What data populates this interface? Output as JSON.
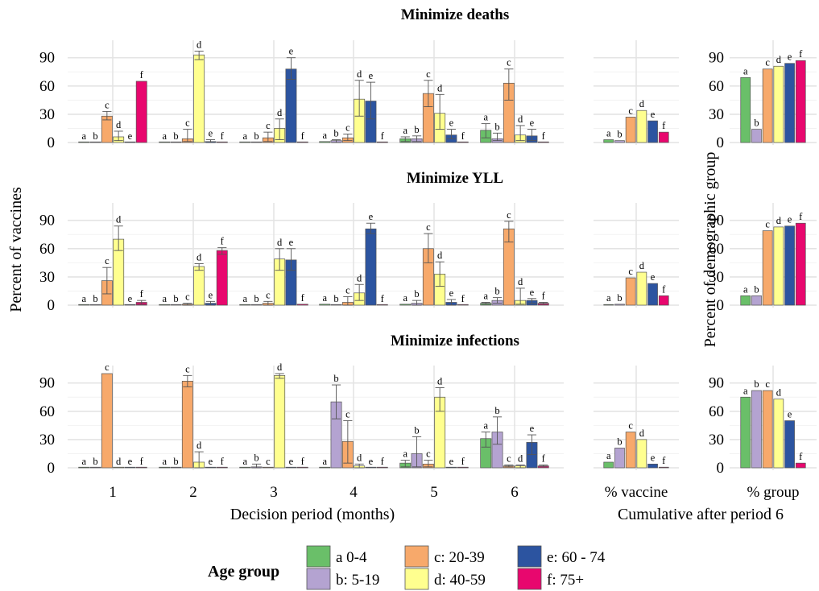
{
  "chart_data": {
    "type": "bar",
    "ylabel_left": "Percent of vaccines",
    "ylabel_right": "Percent of demographic group",
    "xlabel_main": "Decision period (months)",
    "xlabel_cumulative": "Cumulative after period 6",
    "periods": [
      "1",
      "2",
      "3",
      "4",
      "5",
      "6"
    ],
    "cumulative_labels": [
      "% vaccine",
      "% group"
    ],
    "yticks": [
      "0",
      "30",
      "60",
      "90"
    ],
    "ylim": [
      0,
      100
    ],
    "letters": [
      "a",
      "b",
      "c",
      "d",
      "e",
      "f"
    ],
    "legend": {
      "title": "Age group",
      "position": "bottom",
      "entries": [
        {
          "label": "a 0-4",
          "color": "#6abf69"
        },
        {
          "label": "b: 5-19",
          "color": "#b4a3d1"
        },
        {
          "label": "c: 20-39",
          "color": "#f7a96b"
        },
        {
          "label": "d: 40-59",
          "color": "#ffff8f"
        },
        {
          "label": "e: 60 - 74",
          "color": "#2c54a0"
        },
        {
          "label": "f: 75+",
          "color": "#e8076e"
        }
      ]
    },
    "panels": [
      {
        "title": "Minimize deaths",
        "periods": [
          {
            "values": [
              0,
              0,
              28,
              6,
              0,
              65
            ],
            "errors": [
              null,
              null,
              [
                24,
                33
              ],
              [
                2,
                12
              ],
              null,
              null
            ]
          },
          {
            "values": [
              0,
              0,
              4,
              93,
              1,
              0
            ],
            "errors": [
              null,
              null,
              [
                1,
                14
              ],
              [
                88,
                97
              ],
              [
                0,
                3
              ],
              null
            ]
          },
          {
            "values": [
              0,
              0,
              5,
              15,
              78,
              0
            ],
            "errors": [
              null,
              null,
              [
                1,
                11
              ],
              [
                3,
                25
              ],
              [
                67,
                90
              ],
              null
            ]
          },
          {
            "values": [
              1,
              2,
              5,
              46,
              44,
              0
            ],
            "errors": [
              null,
              [
                0,
                3
              ],
              [
                2,
                9
              ],
              [
                28,
                66
              ],
              [
                25,
                64
              ],
              null
            ]
          },
          {
            "values": [
              4,
              4,
              52,
              31,
              8,
              0
            ],
            "errors": [
              [
                1,
                6
              ],
              [
                1,
                7
              ],
              [
                38,
                66
              ],
              [
                14,
                51
              ],
              [
                4,
                14
              ],
              null
            ]
          },
          {
            "values": [
              13,
              4,
              63,
              8,
              7,
              0
            ],
            "errors": [
              [
                5,
                20
              ],
              [
                2,
                10
              ],
              [
                45,
                78
              ],
              [
                2,
                18
              ],
              [
                2,
                14
              ],
              null
            ]
          }
        ],
        "pct_vaccine": [
          3,
          2,
          27,
          34,
          23,
          11
        ],
        "pct_group": [
          69,
          14,
          78,
          81,
          84,
          87
        ]
      },
      {
        "title": "Minimize YLL",
        "periods": [
          {
            "values": [
              0,
              0,
              26,
              70,
              0,
              3
            ],
            "errors": [
              null,
              null,
              [
                12,
                40
              ],
              [
                58,
                84
              ],
              null,
              [
                1,
                5
              ]
            ]
          },
          {
            "values": [
              0,
              0,
              1,
              41,
              2,
              58
            ],
            "errors": [
              null,
              null,
              [
                0,
                2
              ],
              [
                37,
                44
              ],
              [
                0,
                4
              ],
              [
                54,
                61
              ]
            ]
          },
          {
            "values": [
              0,
              0,
              2,
              49,
              48,
              1
            ],
            "errors": [
              null,
              null,
              [
                0,
                4
              ],
              [
                37,
                60
              ],
              [
                37,
                60
              ],
              null
            ]
          },
          {
            "values": [
              1,
              0,
              3,
              13,
              81,
              0
            ],
            "errors": [
              null,
              null,
              [
                0,
                9
              ],
              [
                5,
                22
              ],
              [
                76,
                87
              ],
              null
            ]
          },
          {
            "values": [
              1,
              2,
              60,
              33,
              3,
              0
            ],
            "errors": [
              null,
              [
                0,
                5
              ],
              [
                45,
                76
              ],
              [
                20,
                46
              ],
              [
                0,
                6
              ],
              null
            ]
          },
          {
            "values": [
              2,
              5,
              81,
              5,
              5,
              2
            ],
            "errors": [
              [
                1,
                3
              ],
              [
                2,
                8
              ],
              [
                67,
                89
              ],
              [
                1,
                18
              ],
              [
                2,
                7
              ],
              [
                1,
                3
              ]
            ]
          }
        ],
        "pct_vaccine": [
          0,
          1,
          29,
          35,
          23,
          10
        ],
        "pct_group": [
          10,
          10,
          79,
          83,
          84,
          87
        ]
      },
      {
        "title": "Minimize infections",
        "periods": [
          {
            "values": [
              0,
              0,
              100,
              0,
              0,
              0
            ],
            "errors": [
              null,
              null,
              null,
              null,
              null,
              null
            ]
          },
          {
            "values": [
              0,
              0,
              92,
              6,
              0,
              0
            ],
            "errors": [
              null,
              null,
              [
                86,
                98
              ],
              [
                0,
                17
              ],
              null,
              null
            ]
          },
          {
            "values": [
              0,
              1,
              0,
              98,
              0,
              0
            ],
            "errors": [
              null,
              [
                0,
                4
              ],
              null,
              [
                95,
                100
              ],
              null,
              null
            ]
          },
          {
            "values": [
              0,
              70,
              28,
              2,
              0,
              0
            ],
            "errors": [
              null,
              [
                52,
                88
              ],
              [
                5,
                50
              ],
              [
                0,
                4
              ],
              null,
              null
            ]
          },
          {
            "values": [
              5,
              15,
              4,
              75,
              0,
              0
            ],
            "errors": [
              [
                1,
                8
              ],
              [
                1,
                33
              ],
              [
                1,
                8
              ],
              [
                60,
                85
              ],
              null,
              null
            ]
          },
          {
            "values": [
              31,
              38,
              2,
              2,
              27,
              2
            ],
            "errors": [
              [
                22,
                38
              ],
              [
                25,
                54
              ],
              [
                1,
                3
              ],
              [
                0,
                3
              ],
              [
                14,
                35
              ],
              [
                1,
                3
              ]
            ]
          }
        ],
        "pct_vaccine": [
          6,
          21,
          38,
          30,
          4,
          0
        ],
        "pct_group": [
          75,
          82,
          82,
          73,
          50,
          5
        ]
      }
    ]
  }
}
